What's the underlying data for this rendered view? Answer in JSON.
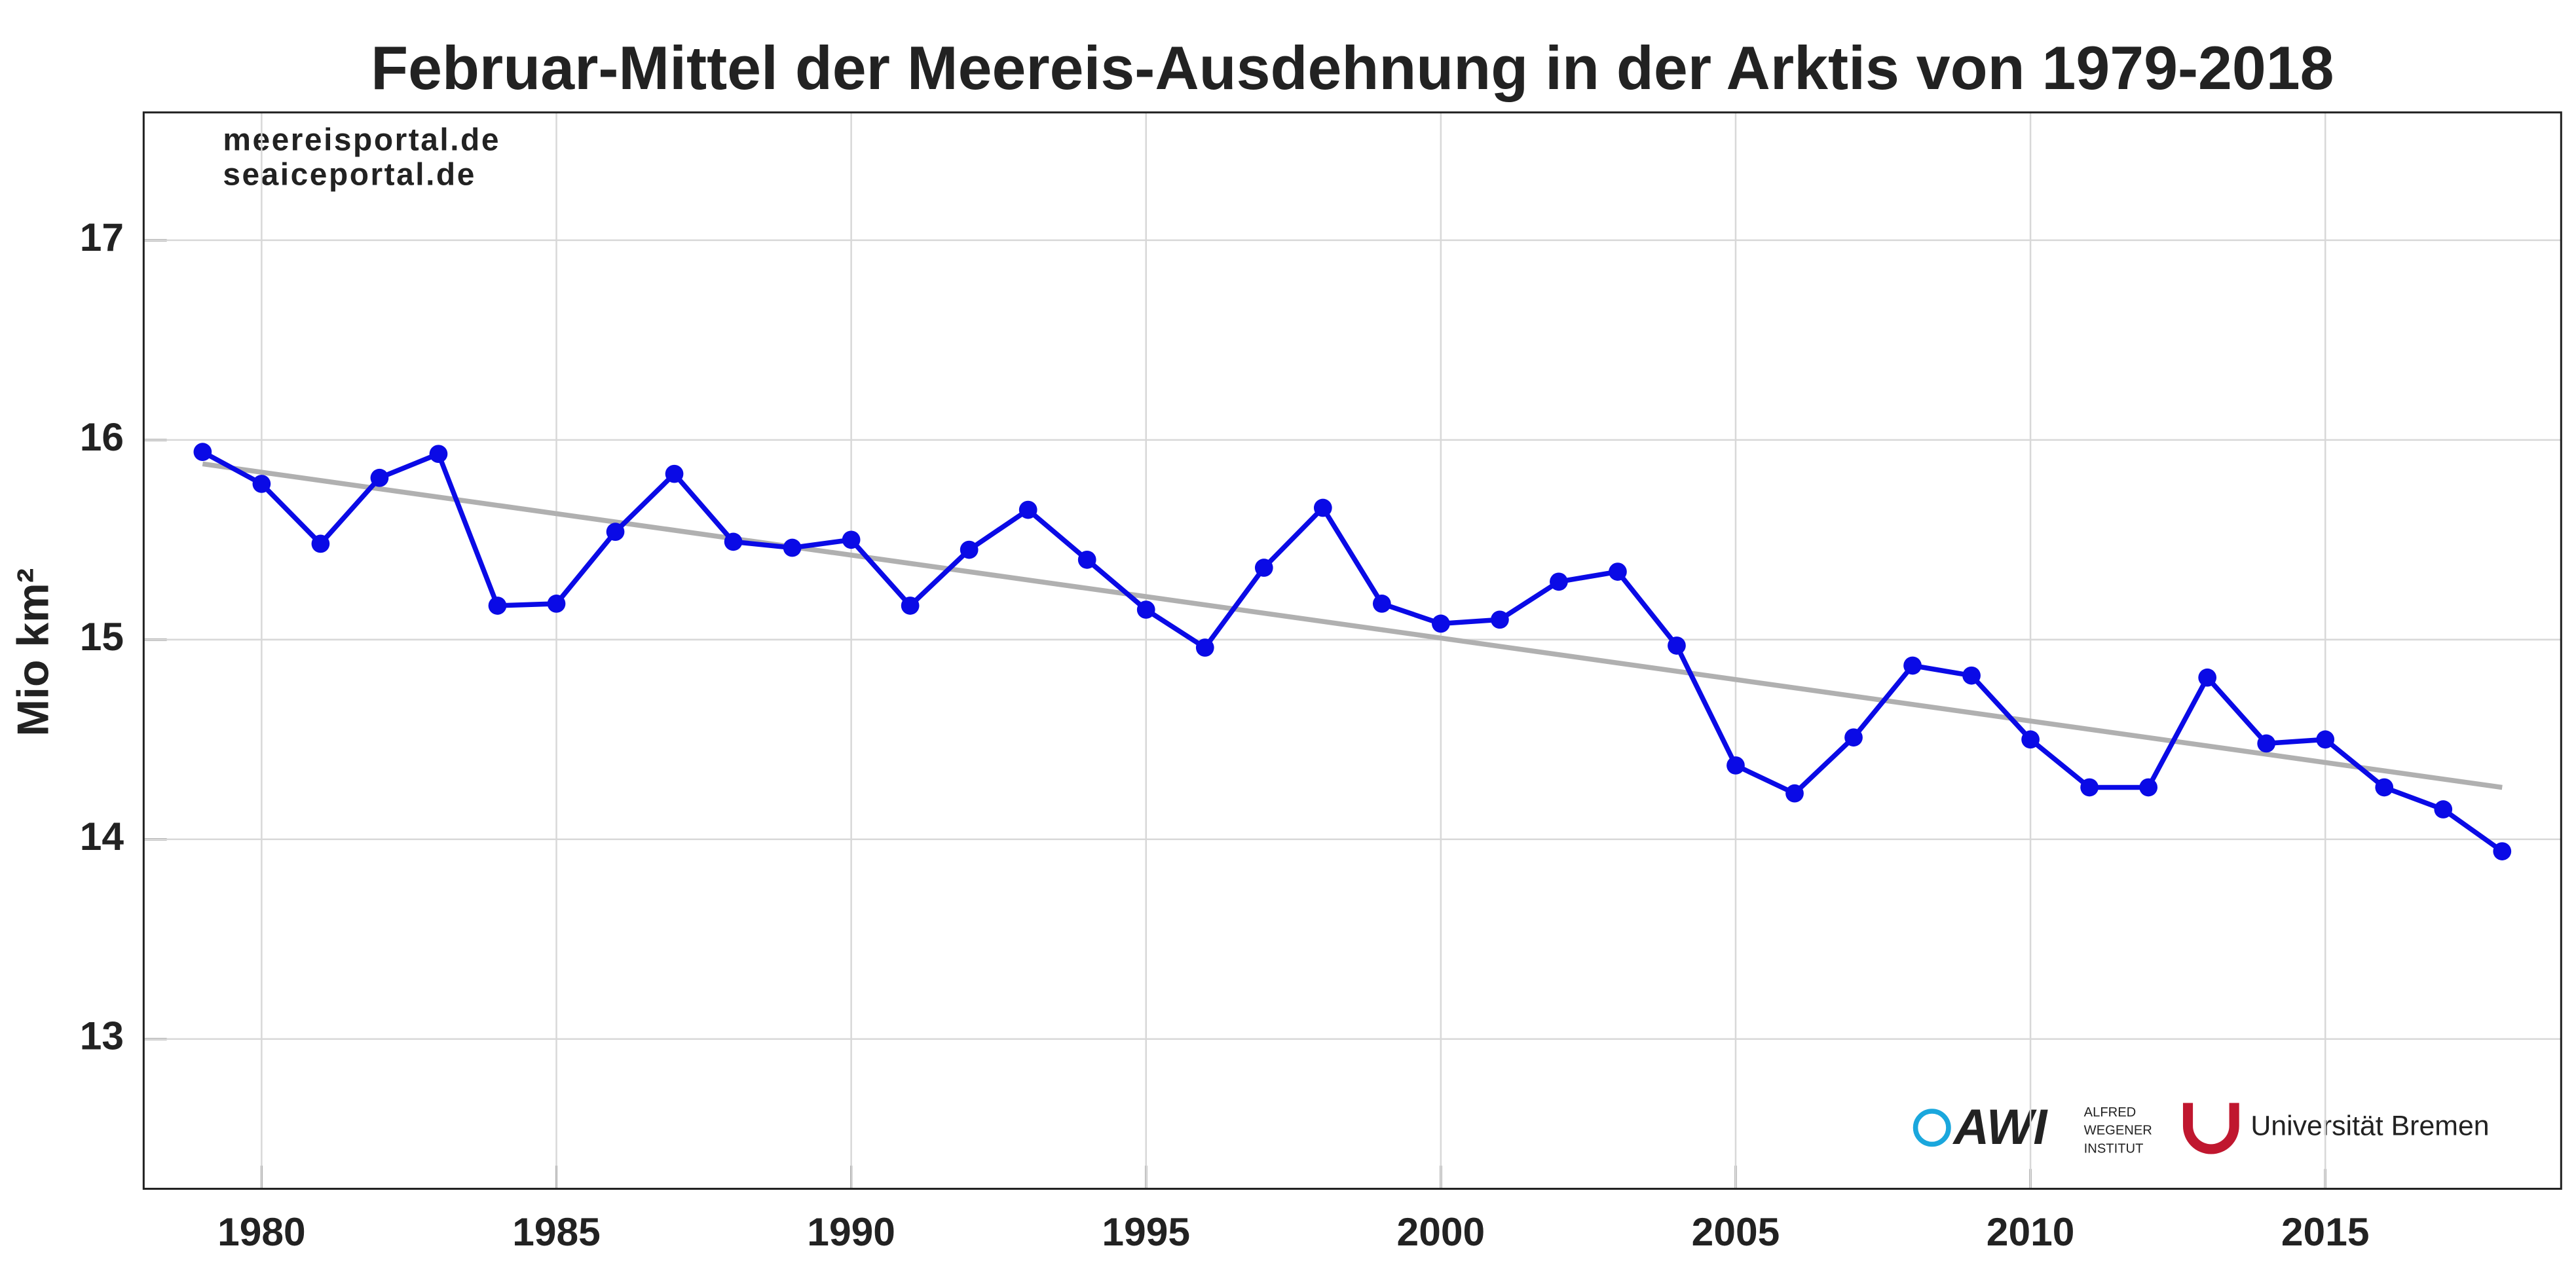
{
  "chart_data": {
    "type": "line",
    "title": "Februar-Mittel der Meereis-Ausdehnung in der Arktis von 1979-2018",
    "y_label": "Mio km²",
    "x": [
      1979,
      1980,
      1981,
      1982,
      1983,
      1984,
      1985,
      1986,
      1987,
      1988,
      1989,
      1990,
      1991,
      1992,
      1993,
      1994,
      1995,
      1996,
      1997,
      1998,
      1999,
      2000,
      2001,
      2002,
      2003,
      2004,
      2005,
      2006,
      2007,
      2008,
      2009,
      2010,
      2011,
      2012,
      2013,
      2014,
      2015,
      2016,
      2017,
      2018
    ],
    "series": [
      {
        "color": "#0a0ae6",
        "values": [
          15.94,
          15.78,
          15.48,
          15.81,
          15.93,
          15.17,
          15.18,
          15.54,
          15.83,
          15.49,
          15.46,
          15.5,
          15.17,
          15.45,
          15.65,
          15.4,
          15.15,
          14.96,
          15.36,
          15.66,
          15.18,
          15.08,
          15.1,
          15.29,
          15.34,
          14.97,
          14.37,
          14.23,
          14.51,
          14.87,
          14.82,
          14.5,
          14.26,
          14.26,
          14.81,
          14.48,
          14.5,
          14.26,
          14.15,
          13.94
        ]
      }
    ],
    "trend": {
      "x": [
        1979,
        2018
      ],
      "values": [
        15.88,
        14.26
      ],
      "color": "#b0b0b0"
    },
    "xlim": [
      1978,
      2019
    ],
    "ylim": [
      12.25,
      17.64
    ],
    "xticks": [
      1980,
      1985,
      1990,
      1995,
      2000,
      2005,
      2010,
      2015
    ],
    "yticks": [
      13,
      14,
      15,
      16,
      17
    ],
    "grid": true,
    "watermark": [
      "meereisportal.de",
      "seaiceportal.de"
    ],
    "logos": {
      "awi": "AWI",
      "awi_name": [
        "ALFRED",
        "WEGENER",
        "INSTITUT"
      ],
      "bremen": "Universität Bremen"
    }
  }
}
